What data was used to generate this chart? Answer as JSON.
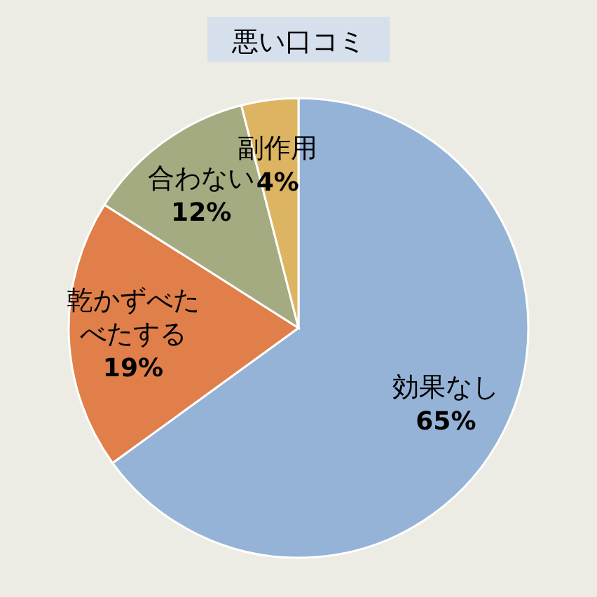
{
  "chart_data": {
    "type": "pie",
    "title": "悪い口コミ",
    "categories": [
      "効果なし",
      "乾かずべたべたする",
      "合わない",
      "副作用"
    ],
    "values": [
      65,
      19,
      12,
      4
    ],
    "value_labels": [
      "65%",
      "19%",
      "12%",
      "4%"
    ],
    "colors": [
      "#95b3d7",
      "#e07f4a",
      "#a5ab80",
      "#dcb462"
    ],
    "legend": false
  }
}
